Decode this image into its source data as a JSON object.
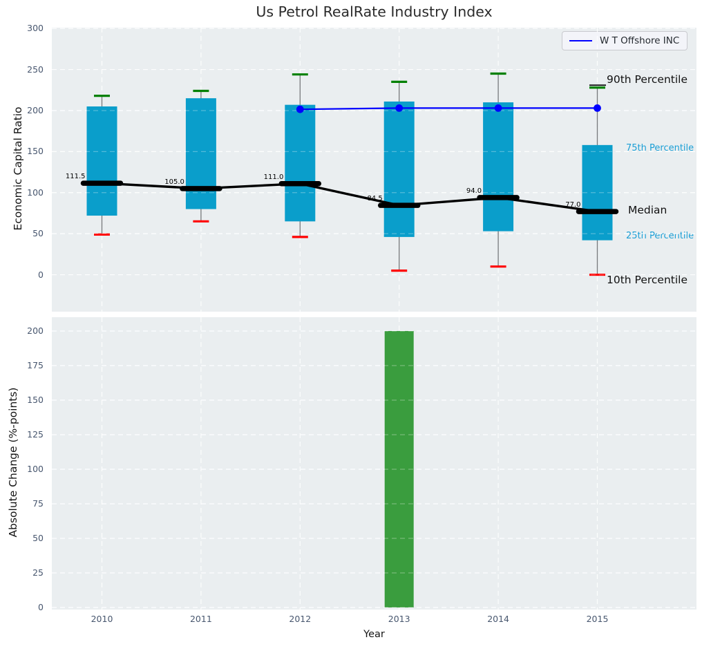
{
  "figure": {
    "title": "Us Petrol RealRate Industry Index"
  },
  "colors": {
    "box_fill": "#0a9ecb",
    "whisker_line": "#77797c",
    "p90_cap": "#008000",
    "p10_cap": "#ff0000",
    "median_line": "#000000",
    "company_line": "#0000ff",
    "bar_fill": "#3a9d3e",
    "panel_bg": "#eaeef0",
    "grid": "#ffffff",
    "tick_text": "#47566e",
    "cyan_text": "#1b9fd6"
  },
  "chart_data": [
    {
      "type": "boxplot",
      "title": "Us Petrol RealRate Industry Index",
      "ylabel": "Economic Capital Ratio",
      "xlabel": "",
      "categories": [
        2010,
        2011,
        2012,
        2013,
        2014,
        2015
      ],
      "yticks": [
        0,
        50,
        100,
        150,
        200,
        250,
        300
      ],
      "ylim": [
        -45,
        301
      ],
      "grid": true,
      "legend_position": "upper right",
      "boxes": [
        {
          "year": 2010,
          "p10": 49,
          "p25": 72,
          "median": 111.5,
          "p75": 205,
          "p90": 218
        },
        {
          "year": 2011,
          "p10": 65,
          "p25": 80,
          "median": 105.0,
          "p75": 215,
          "p90": 224
        },
        {
          "year": 2012,
          "p10": 46,
          "p25": 65,
          "median": 111.0,
          "p75": 207,
          "p90": 244
        },
        {
          "year": 2013,
          "p10": 5,
          "p25": 46,
          "median": 84.5,
          "p75": 211,
          "p90": 235
        },
        {
          "year": 2014,
          "p10": 10,
          "p25": 53,
          "median": 94.0,
          "p75": 210,
          "p90": 245
        },
        {
          "year": 2015,
          "p10": 0,
          "p25": 42,
          "median": 77.0,
          "p75": 158,
          "p90": 228
        }
      ],
      "median_labels": [
        "111.5",
        "105.0",
        "111.0",
        "84.5",
        "94.0",
        "77.0"
      ],
      "series": [
        {
          "name": "W T Offshore INC",
          "x": [
            2012,
            2013,
            2014,
            2015
          ],
          "values": [
            201.5,
            203,
            203,
            203
          ],
          "color": "#0000ff"
        }
      ],
      "legend": {
        "entries": [
          {
            "label": "W T Offshore INC",
            "color": "#0000ff"
          }
        ]
      },
      "annotations": [
        {
          "text": "90th Percentile",
          "style": "black"
        },
        {
          "text": "75th Percentile",
          "style": "cyan"
        },
        {
          "text": "Median",
          "style": "black"
        },
        {
          "text": "25th Percentile",
          "style": "cyan"
        },
        {
          "text": "10th Percentile",
          "style": "black"
        }
      ]
    },
    {
      "type": "bar",
      "ylabel": "Absolute Change (%-points)",
      "xlabel": "Year",
      "categories": [
        2010,
        2011,
        2012,
        2013,
        2014,
        2015
      ],
      "values": [
        null,
        null,
        null,
        200,
        null,
        null
      ],
      "yticks": [
        0,
        25,
        50,
        75,
        100,
        125,
        150,
        175,
        200
      ],
      "ylim": [
        -1.5,
        210
      ],
      "grid": true
    }
  ]
}
